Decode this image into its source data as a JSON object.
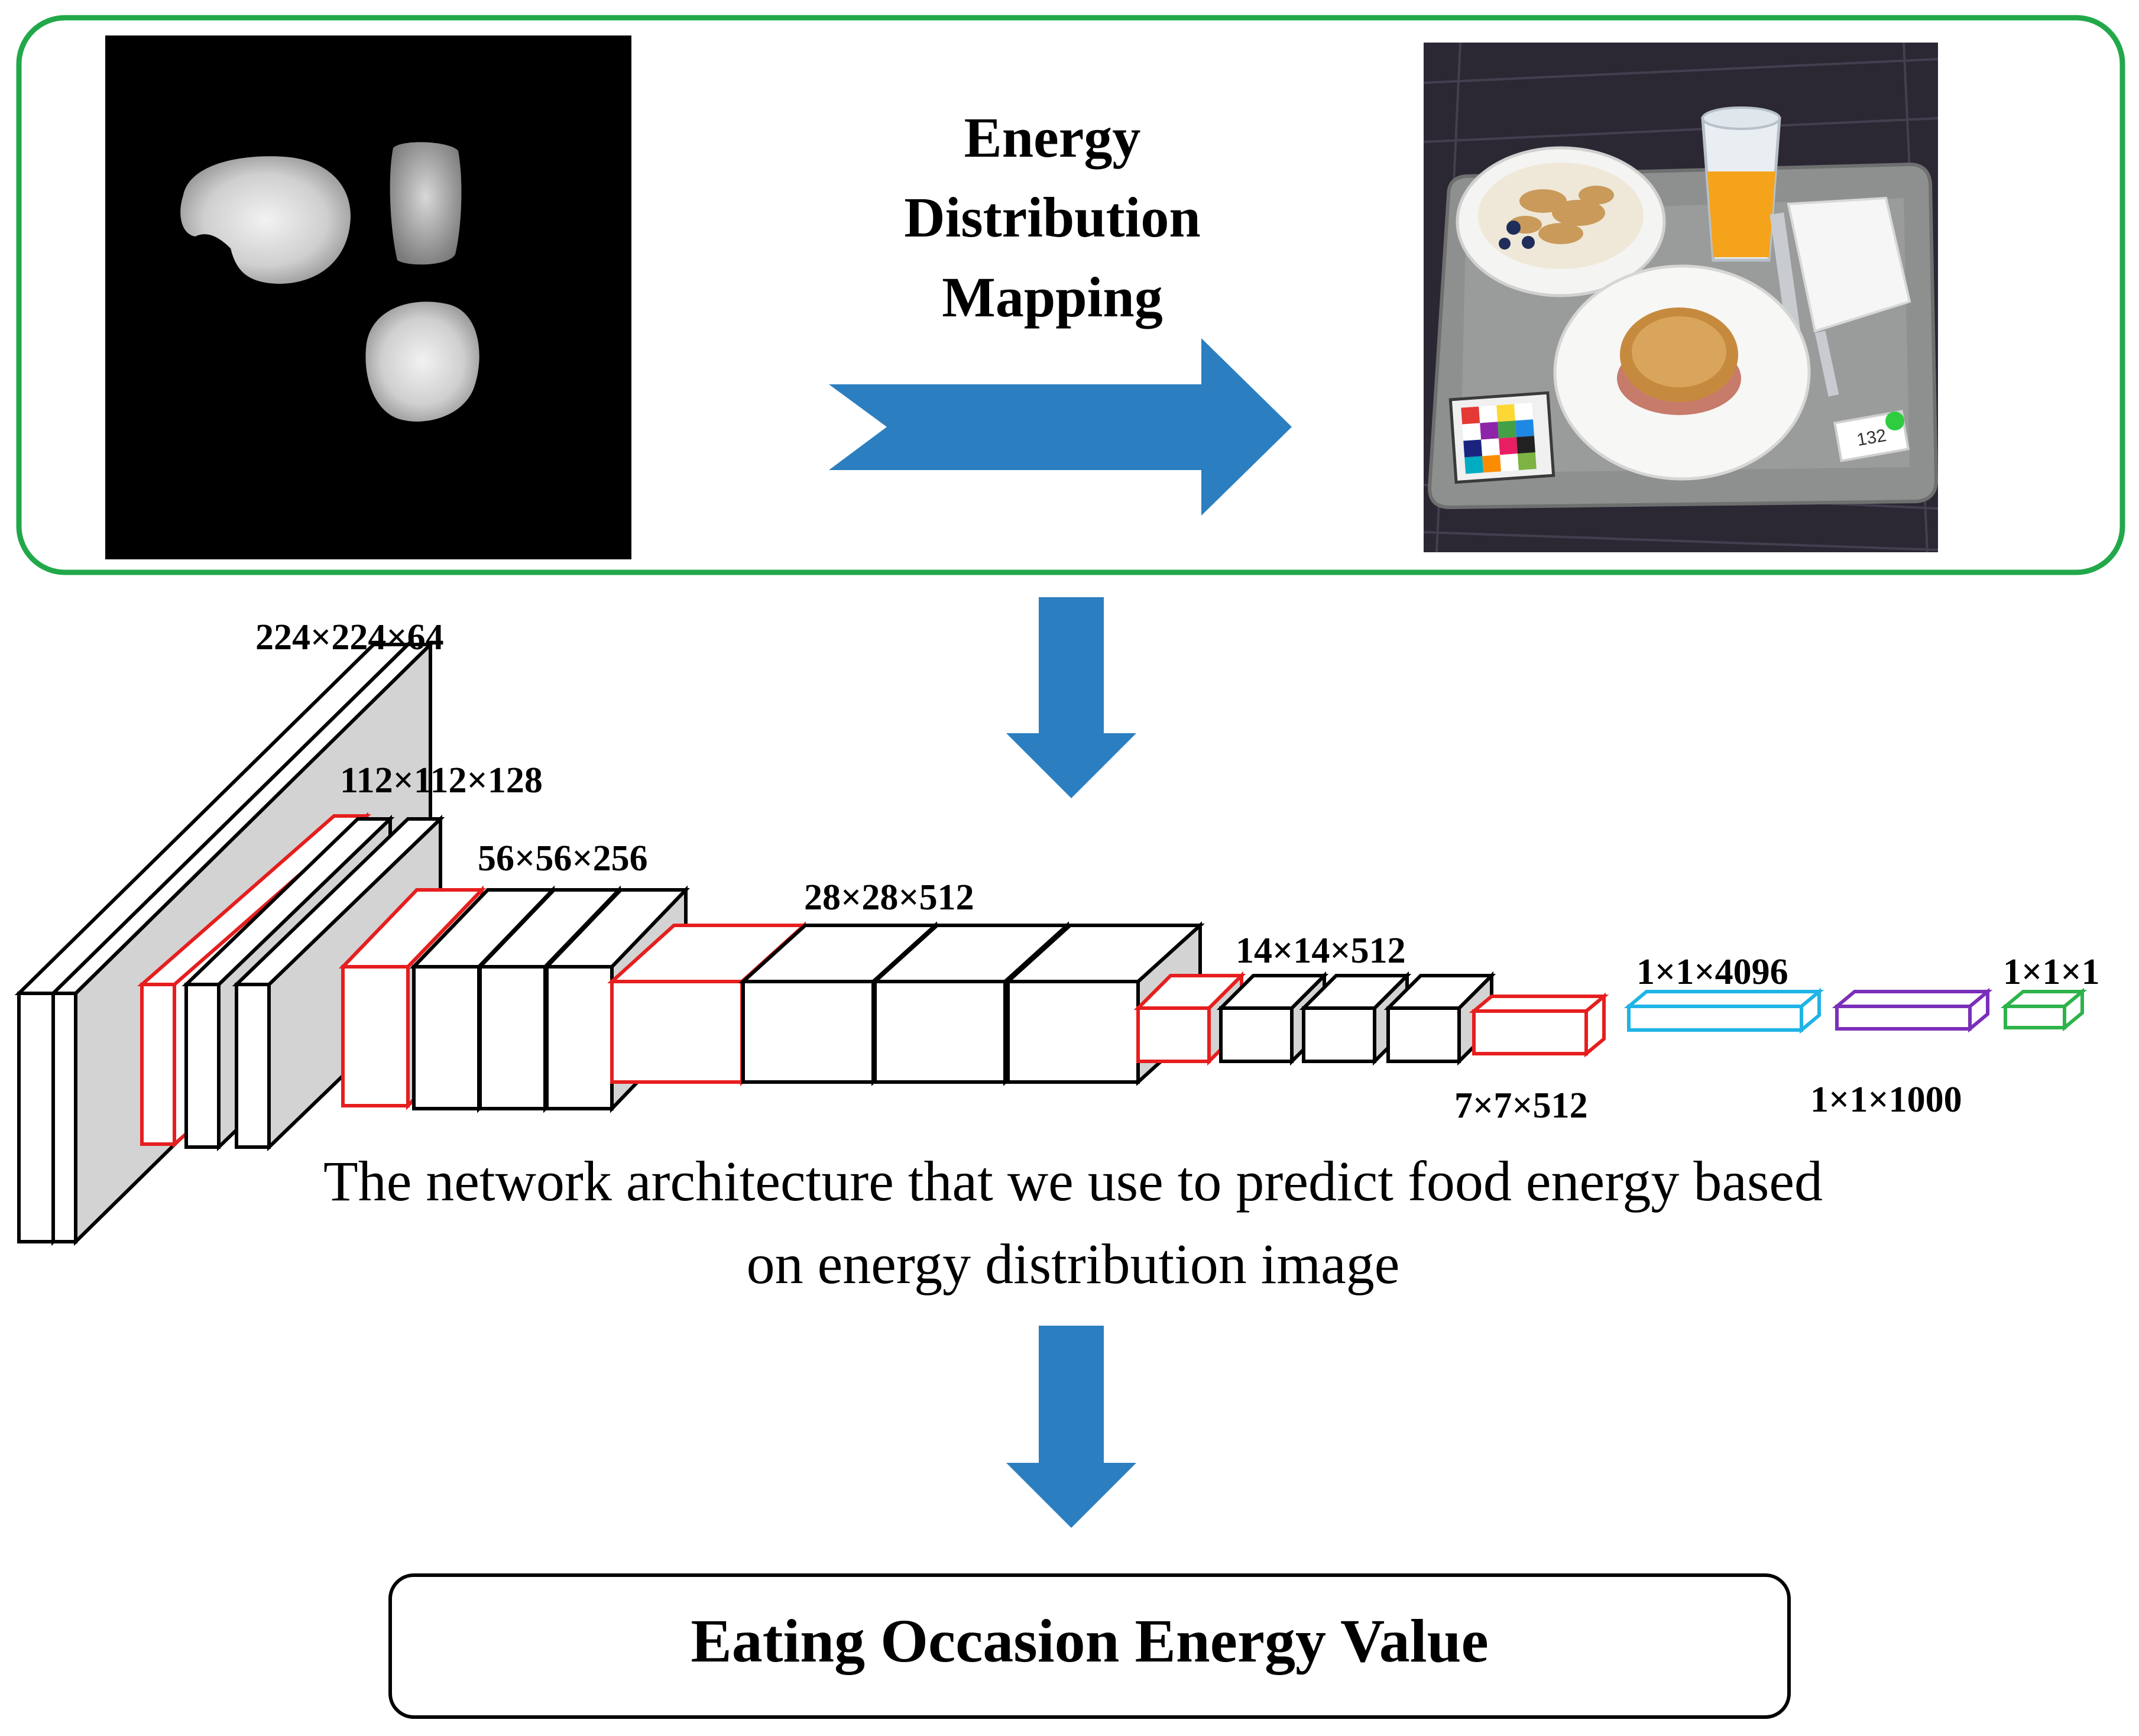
{
  "mapping": {
    "title_lines": [
      "Energy",
      "Distribution",
      "Mapping"
    ]
  },
  "photo": {
    "tag_number": "132"
  },
  "network": {
    "layer_labels": [
      "224×224×64",
      "112×112×128",
      "56×56×256",
      "28×28×512",
      "14×14×512",
      "7×7×512",
      "1×1×4096",
      "1×1×1000",
      "1×1×1"
    ],
    "caption_lines": [
      "The network architecture that we use to predict food energy based",
      "on energy distribution image"
    ]
  },
  "output": {
    "label": "Eating Occasion Energy Value"
  },
  "colors": {
    "frame_green": "#22a84a",
    "arrow_blue": "#2b7fc0",
    "pool_red": "#e61e1e",
    "fc1_cyan": "#1fb4e6",
    "fc2_purple": "#7a2fb8",
    "fc3_green": "#2db34a",
    "block_side": "#d3d3d3"
  }
}
